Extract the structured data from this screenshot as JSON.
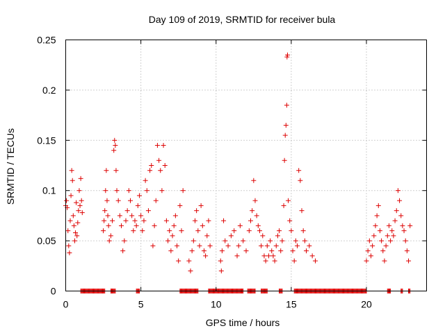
{
  "chart_data": {
    "type": "scatter",
    "title": "Day 109 of 2019, SRMTID for receiver bula",
    "xlabel": "GPS time / hours",
    "ylabel": "SRMTID / TECUs",
    "xlim": [
      0,
      24
    ],
    "ylim": [
      0,
      0.25
    ],
    "xticks": [
      0,
      5,
      10,
      15,
      20
    ],
    "xtick_labels": [
      "0",
      "5",
      "10",
      "15",
      "20"
    ],
    "yticks": [
      0,
      0.05,
      0.1,
      0.15,
      0.2,
      0.25
    ],
    "ytick_labels": [
      "0",
      "0.05",
      "0.1",
      "0.15",
      "0.2",
      "0.25"
    ],
    "grid": true,
    "marker": "+",
    "color": "#dd0000",
    "series": [
      {
        "name": "SRMTID",
        "points": [
          [
            0.0,
            0.085
          ],
          [
            0.05,
            0.09
          ],
          [
            0.1,
            0.083
          ],
          [
            0.15,
            0.06
          ],
          [
            0.2,
            0.045
          ],
          [
            0.25,
            0.038
          ],
          [
            0.3,
            0.07
          ],
          [
            0.35,
            0.095
          ],
          [
            0.4,
            0.12
          ],
          [
            0.45,
            0.11
          ],
          [
            0.5,
            0.075
          ],
          [
            0.55,
            0.065
          ],
          [
            0.6,
            0.05
          ],
          [
            0.65,
            0.058
          ],
          [
            0.7,
            0.088
          ],
          [
            0.75,
            0.055
          ],
          [
            0.8,
            0.068
          ],
          [
            0.85,
            0.08
          ],
          [
            0.9,
            0.1
          ],
          [
            0.95,
            0.085
          ],
          [
            1.0,
            0.112
          ],
          [
            1.05,
            0.09
          ],
          [
            1.1,
            0.078
          ],
          [
            2.5,
            0.06
          ],
          [
            2.55,
            0.07
          ],
          [
            2.6,
            0.08
          ],
          [
            2.65,
            0.1
          ],
          [
            2.7,
            0.12
          ],
          [
            2.75,
            0.09
          ],
          [
            2.8,
            0.075
          ],
          [
            2.85,
            0.065
          ],
          [
            2.9,
            0.05
          ],
          [
            3.0,
            0.055
          ],
          [
            3.1,
            0.07
          ],
          [
            3.2,
            0.14
          ],
          [
            3.25,
            0.15
          ],
          [
            3.3,
            0.145
          ],
          [
            3.35,
            0.12
          ],
          [
            3.4,
            0.1
          ],
          [
            3.5,
            0.09
          ],
          [
            3.6,
            0.075
          ],
          [
            3.7,
            0.065
          ],
          [
            3.8,
            0.04
          ],
          [
            3.9,
            0.05
          ],
          [
            4.0,
            0.07
          ],
          [
            4.1,
            0.08
          ],
          [
            4.2,
            0.1
          ],
          [
            4.3,
            0.09
          ],
          [
            4.4,
            0.075
          ],
          [
            4.5,
            0.06
          ],
          [
            4.6,
            0.07
          ],
          [
            4.7,
            0.065
          ],
          [
            4.8,
            0.085
          ],
          [
            4.9,
            0.095
          ],
          [
            5.0,
            0.075
          ],
          [
            5.1,
            0.06
          ],
          [
            5.2,
            0.07
          ],
          [
            5.3,
            0.11
          ],
          [
            5.4,
            0.1
          ],
          [
            5.5,
            0.08
          ],
          [
            5.6,
            0.12
          ],
          [
            5.7,
            0.125
          ],
          [
            5.8,
            0.045
          ],
          [
            5.9,
            0.065
          ],
          [
            6.0,
            0.09
          ],
          [
            6.1,
            0.145
          ],
          [
            6.2,
            0.13
          ],
          [
            6.3,
            0.12
          ],
          [
            6.4,
            0.1
          ],
          [
            6.5,
            0.145
          ],
          [
            6.6,
            0.125
          ],
          [
            6.7,
            0.07
          ],
          [
            6.8,
            0.05
          ],
          [
            6.9,
            0.06
          ],
          [
            7.0,
            0.04
          ],
          [
            7.1,
            0.055
          ],
          [
            7.2,
            0.065
          ],
          [
            7.3,
            0.075
          ],
          [
            7.4,
            0.045
          ],
          [
            7.5,
            0.03
          ],
          [
            7.6,
            0.085
          ],
          [
            7.7,
            0.06
          ],
          [
            7.8,
            0.1
          ],
          [
            8.2,
            0.03
          ],
          [
            8.3,
            0.02
          ],
          [
            8.4,
            0.04
          ],
          [
            8.5,
            0.05
          ],
          [
            8.6,
            0.07
          ],
          [
            8.7,
            0.08
          ],
          [
            8.8,
            0.06
          ],
          [
            8.9,
            0.045
          ],
          [
            9.0,
            0.085
          ],
          [
            9.1,
            0.065
          ],
          [
            9.2,
            0.04
          ],
          [
            9.3,
            0.035
          ],
          [
            9.4,
            0.055
          ],
          [
            9.5,
            0.07
          ],
          [
            9.6,
            0.045
          ],
          [
            10.3,
            0.03
          ],
          [
            10.35,
            0.02
          ],
          [
            10.4,
            0.04
          ],
          [
            10.5,
            0.07
          ],
          [
            10.6,
            0.05
          ],
          [
            10.8,
            0.045
          ],
          [
            11.0,
            0.055
          ],
          [
            11.2,
            0.06
          ],
          [
            11.4,
            0.035
          ],
          [
            11.5,
            0.045
          ],
          [
            11.6,
            0.065
          ],
          [
            11.8,
            0.05
          ],
          [
            12.0,
            0.04
          ],
          [
            12.2,
            0.06
          ],
          [
            12.3,
            0.07
          ],
          [
            12.4,
            0.08
          ],
          [
            12.5,
            0.11
          ],
          [
            12.6,
            0.09
          ],
          [
            12.7,
            0.075
          ],
          [
            12.8,
            0.065
          ],
          [
            12.9,
            0.06
          ],
          [
            13.0,
            0.045
          ],
          [
            13.1,
            0.055
          ],
          [
            13.2,
            0.035
          ],
          [
            13.3,
            0.03
          ],
          [
            13.4,
            0.045
          ],
          [
            13.5,
            0.035
          ],
          [
            13.6,
            0.05
          ],
          [
            13.7,
            0.04
          ],
          [
            13.8,
            0.035
          ],
          [
            13.9,
            0.03
          ],
          [
            14.0,
            0.045
          ],
          [
            14.1,
            0.055
          ],
          [
            14.2,
            0.06
          ],
          [
            14.3,
            0.04
          ],
          [
            14.4,
            0.05
          ],
          [
            14.5,
            0.085
          ],
          [
            14.55,
            0.13
          ],
          [
            14.6,
            0.155
          ],
          [
            14.65,
            0.165
          ],
          [
            14.7,
            0.185
          ],
          [
            14.72,
            0.233
          ],
          [
            14.75,
            0.235
          ],
          [
            14.8,
            0.09
          ],
          [
            14.9,
            0.07
          ],
          [
            15.0,
            0.06
          ],
          [
            15.1,
            0.04
          ],
          [
            15.2,
            0.03
          ],
          [
            15.3,
            0.05
          ],
          [
            15.4,
            0.045
          ],
          [
            15.5,
            0.12
          ],
          [
            15.6,
            0.11
          ],
          [
            15.7,
            0.08
          ],
          [
            15.8,
            0.06
          ],
          [
            15.9,
            0.05
          ],
          [
            16.0,
            0.04
          ],
          [
            16.2,
            0.045
          ],
          [
            16.4,
            0.035
          ],
          [
            16.6,
            0.03
          ],
          [
            20.0,
            0.03
          ],
          [
            20.1,
            0.04
          ],
          [
            20.2,
            0.05
          ],
          [
            20.3,
            0.035
          ],
          [
            20.4,
            0.045
          ],
          [
            20.5,
            0.055
          ],
          [
            20.6,
            0.065
          ],
          [
            20.7,
            0.075
          ],
          [
            20.8,
            0.085
          ],
          [
            20.9,
            0.06
          ],
          [
            21.0,
            0.05
          ],
          [
            21.1,
            0.04
          ],
          [
            21.2,
            0.03
          ],
          [
            21.3,
            0.045
          ],
          [
            21.4,
            0.055
          ],
          [
            21.5,
            0.065
          ],
          [
            21.6,
            0.05
          ],
          [
            21.7,
            0.06
          ],
          [
            21.8,
            0.055
          ],
          [
            21.9,
            0.07
          ],
          [
            22.0,
            0.08
          ],
          [
            22.1,
            0.1
          ],
          [
            22.2,
            0.09
          ],
          [
            22.3,
            0.075
          ],
          [
            22.4,
            0.065
          ],
          [
            22.5,
            0.06
          ],
          [
            22.6,
            0.05
          ],
          [
            22.7,
            0.04
          ],
          [
            22.8,
            0.03
          ],
          [
            22.9,
            0.065
          ]
        ],
        "zero_ranges": [
          [
            1.0,
            2.6
          ],
          [
            3.0,
            3.3
          ],
          [
            4.7,
            4.9
          ],
          [
            7.6,
            8.8
          ],
          [
            9.5,
            11.8
          ],
          [
            12.1,
            12.6
          ],
          [
            13.0,
            13.4
          ],
          [
            14.2,
            14.4
          ],
          [
            15.2,
            20.0
          ],
          [
            21.4,
            21.6
          ],
          [
            22.3,
            22.4
          ],
          [
            22.8,
            22.9
          ]
        ]
      }
    ]
  }
}
